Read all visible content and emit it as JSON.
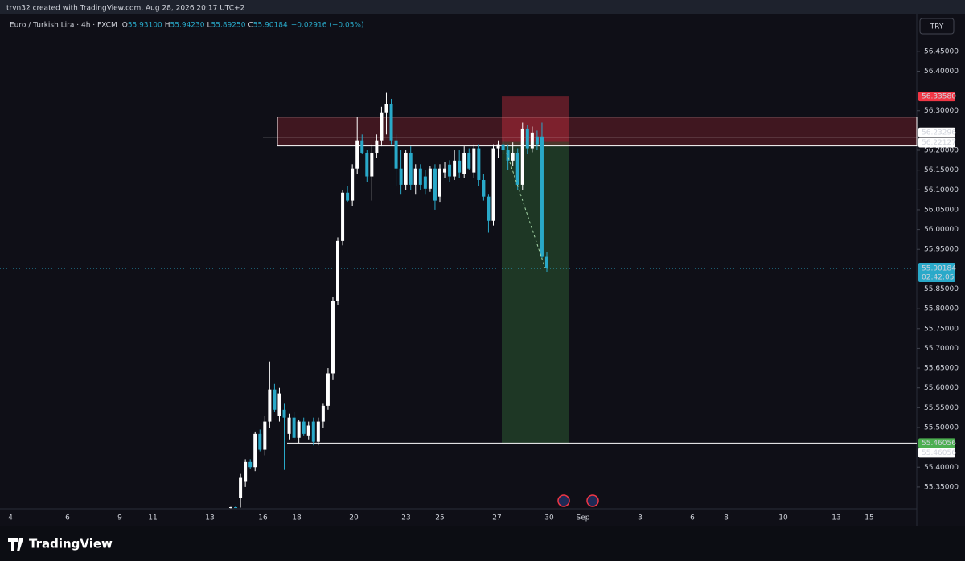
{
  "chart_data": {
    "type": "candlestick",
    "header": "trvn32 created with TradingView.com, Aug 28, 2026 20:17 UTC+2",
    "symbol": "Euro / Turkish Lira · 4h · FXCM",
    "legend": [
      {
        "key": "O",
        "value": "55.93100"
      },
      {
        "key": "H",
        "value": "55.94230"
      },
      {
        "key": "L",
        "value": "55.89250"
      },
      {
        "key": "C",
        "value": "55.90184"
      }
    ],
    "change": "−0.02916 (−0.05%)",
    "currency": "TRY",
    "brand": "TradingView",
    "up_color": "#ffffff",
    "down_color": "#29a9c9",
    "open": [
      55.298,
      55.299,
      55.322,
      55.363,
      55.413,
      55.4,
      55.484,
      55.444,
      55.515,
      55.596,
      55.53,
      55.545,
      55.484,
      55.525,
      55.474,
      55.515,
      55.48,
      55.515,
      55.464,
      55.515,
      55.555,
      55.637,
      55.819,
      55.971,
      56.093,
      56.073,
      56.154,
      56.225,
      56.194,
      56.134,
      56.194,
      56.225,
      56.296,
      56.316,
      56.225,
      56.154,
      56.113,
      56.194,
      56.113,
      56.154,
      56.134,
      56.103,
      56.154,
      56.083,
      56.144,
      56.164,
      56.134,
      56.174,
      56.14,
      56.194,
      56.144,
      56.205,
      56.125,
      56.083,
      56.022,
      56.205,
      56.215,
      56.2,
      56.174,
      56.194,
      56.113,
      56.255,
      56.205,
      56.235,
      56.235,
      55.931
    ],
    "high": [
      55.3,
      55.301,
      55.383,
      55.42,
      55.42,
      55.49,
      55.495,
      55.53,
      55.667,
      55.61,
      55.6,
      55.56,
      55.535,
      55.54,
      55.52,
      55.525,
      55.515,
      55.525,
      55.525,
      55.56,
      55.65,
      55.83,
      55.98,
      56.1,
      56.11,
      56.165,
      56.285,
      56.24,
      56.2,
      56.215,
      56.24,
      56.31,
      56.345,
      56.33,
      56.24,
      56.2,
      56.2,
      56.21,
      56.165,
      56.165,
      56.15,
      56.16,
      56.165,
      56.165,
      56.17,
      56.175,
      56.2,
      56.2,
      56.21,
      56.205,
      56.215,
      56.215,
      56.14,
      56.09,
      56.215,
      56.225,
      56.23,
      56.215,
      56.22,
      56.205,
      56.27,
      56.265,
      56.26,
      56.25,
      56.27,
      55.9423
    ],
    "low": [
      55.296,
      55.297,
      55.298,
      55.35,
      55.395,
      55.39,
      55.44,
      55.43,
      55.5,
      55.54,
      55.515,
      55.393,
      55.47,
      55.47,
      55.46,
      55.48,
      55.47,
      55.455,
      55.455,
      55.5,
      55.545,
      55.62,
      55.81,
      55.96,
      56.07,
      56.06,
      56.14,
      56.19,
      56.12,
      56.073,
      56.18,
      56.21,
      56.24,
      56.215,
      56.11,
      56.09,
      56.1,
      56.1,
      56.09,
      56.1,
      56.09,
      56.095,
      56.05,
      56.07,
      56.13,
      56.12,
      56.125,
      56.13,
      56.13,
      56.15,
      56.13,
      56.11,
      56.073,
      55.992,
      56.01,
      56.18,
      56.19,
      56.15,
      56.16,
      56.1,
      56.1,
      56.19,
      56.195,
      56.2,
      55.925,
      55.8925
    ],
    "close": [
      55.299,
      55.298,
      55.373,
      55.413,
      55.4,
      55.484,
      55.444,
      55.515,
      55.596,
      55.545,
      55.586,
      55.525,
      55.525,
      55.474,
      55.515,
      55.484,
      55.505,
      55.464,
      55.515,
      55.555,
      55.637,
      55.819,
      55.971,
      56.093,
      56.073,
      56.154,
      56.225,
      56.194,
      56.134,
      56.194,
      56.225,
      56.296,
      56.316,
      56.225,
      56.154,
      56.113,
      56.194,
      56.113,
      56.154,
      56.113,
      56.103,
      56.154,
      56.073,
      56.154,
      56.154,
      56.134,
      56.174,
      56.144,
      56.194,
      56.154,
      56.205,
      56.125,
      56.083,
      56.022,
      56.205,
      56.215,
      56.2,
      56.174,
      56.194,
      56.113,
      56.255,
      56.205,
      56.245,
      56.215,
      55.931,
      55.90184
    ],
    "ylim": [
      55.295,
      56.543
    ],
    "yticks": [
      {
        "value": 56.45,
        "label": "56.45000"
      },
      {
        "value": 56.4,
        "label": "56.40000"
      },
      {
        "value": 56.3,
        "label": "56.30000"
      },
      {
        "value": 56.2,
        "label": "56.20000"
      },
      {
        "value": 56.15,
        "label": "56.15000"
      },
      {
        "value": 56.1,
        "label": "56.10000"
      },
      {
        "value": 56.05,
        "label": "56.05000"
      },
      {
        "value": 56.0,
        "label": "56.00000"
      },
      {
        "value": 55.95,
        "label": "55.95000"
      },
      {
        "value": 55.85,
        "label": "55.85000"
      },
      {
        "value": 55.8,
        "label": "55.80000"
      },
      {
        "value": 55.75,
        "label": "55.75000"
      },
      {
        "value": 55.7,
        "label": "55.70000"
      },
      {
        "value": 55.65,
        "label": "55.65000"
      },
      {
        "value": 55.6,
        "label": "55.60000"
      },
      {
        "value": 55.55,
        "label": "55.55000"
      },
      {
        "value": 55.5,
        "label": "55.50000"
      },
      {
        "value": 55.4,
        "label": "55.40000"
      },
      {
        "value": 55.35,
        "label": "55.35000"
      }
    ],
    "xtick_labels": [
      "4",
      "6",
      "9",
      "11",
      "13",
      "16",
      "18",
      "20",
      "23",
      "25",
      "27",
      "30",
      "Sep",
      "3",
      "6",
      "8",
      "10",
      "13",
      "15"
    ],
    "zone": [
      56.284,
      56.211
    ],
    "position": {
      "stop": 56.3358,
      "entry": 56.22127,
      "target": 55.46056
    },
    "price_labels": [
      {
        "value": 56.3358,
        "label": "56.33580",
        "color": "#f23645"
      },
      {
        "value": 56.23296,
        "label": "56.23296",
        "color": "#ffffff"
      },
      {
        "value": 56.22127,
        "label": "56.22127",
        "color": "#ffffff"
      },
      {
        "value": 55.46056,
        "label": "55.46056",
        "color": "#4caf50"
      },
      {
        "value": 55.46056,
        "label": "55.46056",
        "color": "#ffffff"
      }
    ],
    "last_price": {
      "value": 55.90184,
      "label": "55.90184",
      "countdown": "02:42:05",
      "color": "#29a9c9"
    }
  }
}
